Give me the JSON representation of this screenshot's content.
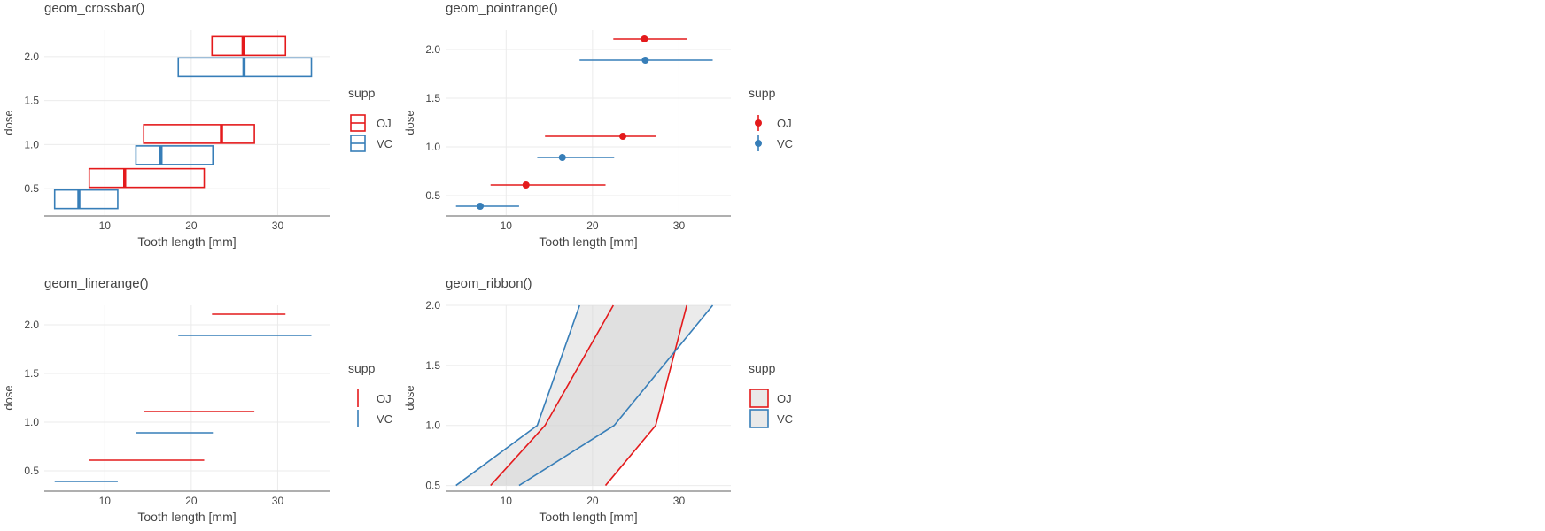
{
  "colors": {
    "OJ": "#e41a1c",
    "VC": "#377eb8",
    "grid": "#ebebeb",
    "axis": "#7f7f7f",
    "text": "#444444",
    "ribbon_fill": "#d3d3d3"
  },
  "chart_data": [
    {
      "id": "crossbar",
      "type": "crossbar",
      "title": "geom_crossbar()",
      "xlabel": "Tooth length [mm]",
      "ylabel": "dose",
      "xlim": [
        3,
        36
      ],
      "ylim": [
        0.2,
        2.3
      ],
      "xticks": [
        10,
        20,
        30
      ],
      "yticks": [
        0.5,
        1.0,
        1.5,
        2.0
      ],
      "ytick_labels": [
        "0.5",
        "1.0",
        "1.5",
        "2.0"
      ],
      "grid": true,
      "legend": {
        "title": "supp",
        "entries": [
          "OJ",
          "VC"
        ],
        "position": "right"
      },
      "series": [
        {
          "name": "OJ",
          "dose": [
            0.5,
            1.0,
            2.0
          ],
          "ymin": [
            8.2,
            14.5,
            22.4
          ],
          "y": [
            12.3,
            23.5,
            26.0
          ],
          "ymax": [
            21.5,
            27.3,
            30.9
          ]
        },
        {
          "name": "VC",
          "dose": [
            0.5,
            1.0,
            2.0
          ],
          "ymin": [
            4.2,
            13.6,
            18.5
          ],
          "y": [
            7.0,
            16.5,
            26.1
          ],
          "ymax": [
            11.5,
            22.5,
            33.9
          ]
        }
      ]
    },
    {
      "id": "pointrange",
      "type": "pointrange",
      "title": "geom_pointrange()",
      "xlabel": "Tooth length [mm]",
      "ylabel": "dose",
      "xlim": [
        3,
        36
      ],
      "ylim": [
        0.3,
        2.2
      ],
      "xticks": [
        10,
        20,
        30
      ],
      "yticks": [
        0.5,
        1.0,
        1.5,
        2.0
      ],
      "ytick_labels": [
        "0.5",
        "1.0",
        "1.5",
        "2.0"
      ],
      "grid": true,
      "legend": {
        "title": "supp",
        "entries": [
          "OJ",
          "VC"
        ],
        "position": "right"
      },
      "series": [
        {
          "name": "OJ",
          "dose": [
            0.5,
            1.0,
            2.0
          ],
          "ymin": [
            8.2,
            14.5,
            22.4
          ],
          "y": [
            12.3,
            23.5,
            26.0
          ],
          "ymax": [
            21.5,
            27.3,
            30.9
          ]
        },
        {
          "name": "VC",
          "dose": [
            0.5,
            1.0,
            2.0
          ],
          "ymin": [
            4.2,
            13.6,
            18.5
          ],
          "y": [
            7.0,
            16.5,
            26.1
          ],
          "ymax": [
            11.5,
            22.5,
            33.9
          ]
        }
      ]
    },
    {
      "id": "linerange",
      "type": "linerange",
      "title": "geom_linerange()",
      "xlabel": "Tooth length [mm]",
      "ylabel": "dose",
      "xlim": [
        3,
        36
      ],
      "ylim": [
        0.3,
        2.2
      ],
      "xticks": [
        10,
        20,
        30
      ],
      "yticks": [
        0.5,
        1.0,
        1.5,
        2.0
      ],
      "ytick_labels": [
        "0.5",
        "1.0",
        "1.5",
        "2.0"
      ],
      "grid": true,
      "legend": {
        "title": "supp",
        "entries": [
          "OJ",
          "VC"
        ],
        "position": "right"
      },
      "series": [
        {
          "name": "OJ",
          "dose": [
            0.5,
            1.0,
            2.0
          ],
          "ymin": [
            8.2,
            14.5,
            22.4
          ],
          "ymax": [
            21.5,
            27.3,
            30.9
          ]
        },
        {
          "name": "VC",
          "dose": [
            0.5,
            1.0,
            2.0
          ],
          "ymin": [
            4.2,
            13.6,
            18.5
          ],
          "ymax": [
            11.5,
            22.5,
            33.9
          ]
        }
      ]
    },
    {
      "id": "ribbon",
      "type": "ribbon",
      "title": "geom_ribbon()",
      "xlabel": "Tooth length [mm]",
      "ylabel": "dose",
      "xlim": [
        3,
        36
      ],
      "ylim": [
        0.46,
        2.0
      ],
      "xticks": [
        10,
        20,
        30
      ],
      "yticks": [
        0.5,
        1.0,
        1.5,
        2.0
      ],
      "ytick_labels": [
        "0.5",
        "1.0",
        "1.5",
        "2.0"
      ],
      "grid": true,
      "legend": {
        "title": "supp",
        "entries": [
          "OJ",
          "VC"
        ],
        "position": "right"
      },
      "series": [
        {
          "name": "OJ",
          "dose": [
            0.5,
            1.0,
            2.0
          ],
          "ymin": [
            8.2,
            14.5,
            22.4
          ],
          "ymax": [
            21.5,
            27.3,
            30.9
          ]
        },
        {
          "name": "VC",
          "dose": [
            0.5,
            1.0,
            2.0
          ],
          "ymin": [
            4.2,
            13.6,
            18.5
          ],
          "ymax": [
            11.5,
            22.5,
            33.9
          ]
        }
      ]
    }
  ]
}
